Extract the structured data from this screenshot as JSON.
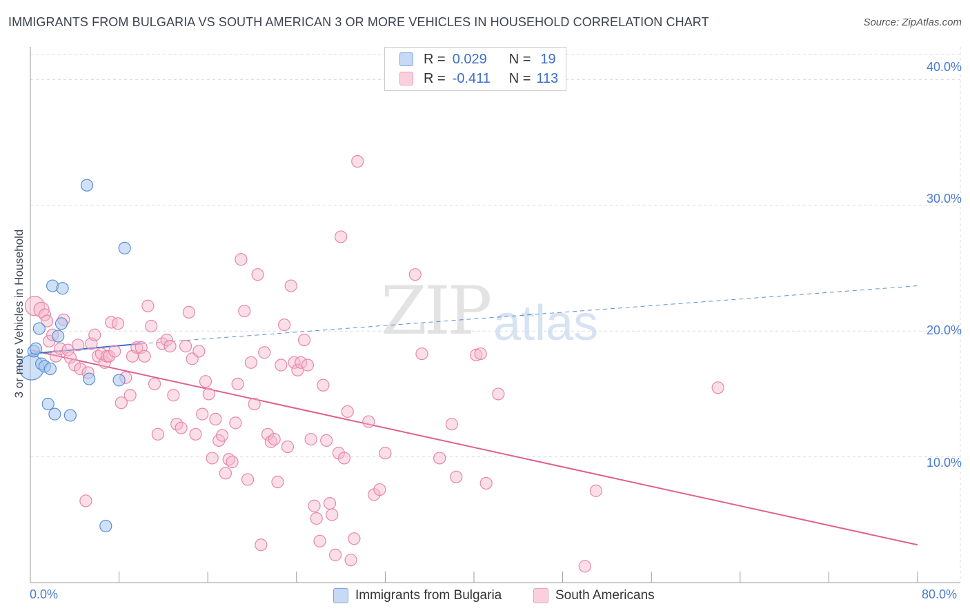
{
  "header": {
    "title": "IMMIGRANTS FROM BULGARIA VS SOUTH AMERICAN 3 OR MORE VEHICLES IN HOUSEHOLD CORRELATION CHART",
    "source": "Source: ZipAtlas.com"
  },
  "watermark": {
    "zip": "ZIP",
    "atlas": "atlas"
  },
  "legend_top": {
    "rows": [
      {
        "r_label": "R =",
        "r_value": "0.029",
        "n_label": "N =",
        "n_value": "19"
      },
      {
        "r_label": "R =",
        "r_value": "-0.411",
        "n_label": "N =",
        "n_value": "113"
      }
    ]
  },
  "colors": {
    "bulgaria_fill": "#aac8f0",
    "bulgaria_stroke": "#5a8fd8",
    "bulgaria_line": "#3a6fcf",
    "south_fill": "#f7b8cc",
    "south_stroke": "#e886a8",
    "south_line": "#e0608e",
    "grid": "#d8dce6",
    "tick_text": "#4a7bd0"
  },
  "chart_data": {
    "type": "scatter",
    "title": "IMMIGRANTS FROM BULGARIA VS SOUTH AMERICAN 3 OR MORE VEHICLES IN HOUSEHOLD CORRELATION CHART",
    "xlabel": "",
    "ylabel": "3 or more Vehicles in Household",
    "xlim": [
      0,
      80
    ],
    "ylim": [
      0,
      42
    ],
    "x_tick_labels": [
      "0.0%",
      "80.0%"
    ],
    "y_ticks": [
      10,
      20,
      30,
      40
    ],
    "y_tick_labels": [
      "10.0%",
      "20.0%",
      "30.0%",
      "40.0%"
    ],
    "grid": true,
    "legend_position": "bottom",
    "series": [
      {
        "name": "Immigrants from Bulgaria",
        "color": "#aac8f0",
        "points": [
          [
            0.1,
            17.1
          ],
          [
            0.3,
            18.4
          ],
          [
            0.5,
            18.6
          ],
          [
            0.8,
            20.2
          ],
          [
            1.0,
            17.4
          ],
          [
            1.3,
            17.2
          ],
          [
            1.6,
            14.2
          ],
          [
            1.8,
            17.0
          ],
          [
            2.0,
            23.6
          ],
          [
            2.2,
            13.4
          ],
          [
            2.5,
            19.6
          ],
          [
            2.8,
            20.6
          ],
          [
            2.9,
            23.4
          ],
          [
            3.6,
            13.3
          ],
          [
            5.1,
            31.6
          ],
          [
            5.3,
            16.2
          ],
          [
            6.8,
            4.5
          ],
          [
            8.0,
            16.1
          ],
          [
            8.5,
            26.6
          ]
        ],
        "trend": {
          "x": [
            0,
            10
          ],
          "y": [
            18.2,
            19.0
          ],
          "dashed_extension": {
            "x": [
              10,
              80
            ],
            "y": [
              19.0,
              23.6
            ]
          }
        }
      },
      {
        "name": "South Americans",
        "color": "#f7b8cc",
        "points": [
          [
            0.4,
            22.0
          ],
          [
            1.0,
            21.7
          ],
          [
            1.3,
            21.3
          ],
          [
            1.5,
            20.8
          ],
          [
            1.7,
            19.2
          ],
          [
            2.0,
            19.7
          ],
          [
            2.3,
            18.0
          ],
          [
            2.7,
            18.6
          ],
          [
            3.0,
            20.9
          ],
          [
            3.4,
            18.5
          ],
          [
            3.6,
            17.9
          ],
          [
            4.0,
            17.3
          ],
          [
            4.3,
            18.9
          ],
          [
            4.5,
            17.0
          ],
          [
            5.0,
            6.5
          ],
          [
            5.2,
            16.7
          ],
          [
            5.5,
            19.0
          ],
          [
            5.8,
            19.7
          ],
          [
            6.1,
            18.0
          ],
          [
            6.4,
            18.2
          ],
          [
            6.7,
            17.5
          ],
          [
            6.9,
            18.0
          ],
          [
            7.1,
            18.0
          ],
          [
            7.3,
            20.7
          ],
          [
            7.6,
            18.4
          ],
          [
            7.9,
            20.6
          ],
          [
            8.2,
            14.3
          ],
          [
            8.6,
            16.3
          ],
          [
            9.0,
            14.9
          ],
          [
            9.2,
            18.0
          ],
          [
            9.6,
            18.7
          ],
          [
            10.0,
            18.7
          ],
          [
            10.3,
            18.0
          ],
          [
            10.6,
            22.0
          ],
          [
            10.9,
            20.4
          ],
          [
            11.2,
            15.8
          ],
          [
            11.5,
            11.8
          ],
          [
            11.9,
            19.0
          ],
          [
            12.3,
            19.3
          ],
          [
            12.6,
            18.8
          ],
          [
            12.9,
            14.9
          ],
          [
            13.2,
            12.6
          ],
          [
            13.6,
            12.3
          ],
          [
            14.0,
            18.8
          ],
          [
            14.3,
            21.5
          ],
          [
            14.6,
            17.8
          ],
          [
            14.9,
            11.8
          ],
          [
            15.2,
            18.4
          ],
          [
            15.5,
            13.4
          ],
          [
            15.8,
            16.0
          ],
          [
            16.1,
            15.0
          ],
          [
            16.4,
            9.9
          ],
          [
            16.7,
            13.0
          ],
          [
            17.0,
            11.3
          ],
          [
            17.3,
            11.7
          ],
          [
            17.6,
            8.7
          ],
          [
            17.9,
            9.8
          ],
          [
            18.2,
            9.6
          ],
          [
            18.5,
            12.7
          ],
          [
            18.7,
            15.8
          ],
          [
            19.0,
            25.7
          ],
          [
            19.3,
            21.6
          ],
          [
            19.6,
            8.2
          ],
          [
            19.9,
            17.5
          ],
          [
            20.2,
            14.2
          ],
          [
            20.5,
            24.5
          ],
          [
            20.8,
            3.0
          ],
          [
            21.1,
            18.3
          ],
          [
            21.4,
            11.8
          ],
          [
            21.7,
            11.2
          ],
          [
            22.0,
            11.4
          ],
          [
            22.3,
            8.0
          ],
          [
            22.6,
            17.3
          ],
          [
            22.9,
            20.5
          ],
          [
            23.2,
            10.8
          ],
          [
            23.5,
            23.6
          ],
          [
            23.8,
            17.5
          ],
          [
            24.1,
            16.9
          ],
          [
            24.4,
            17.5
          ],
          [
            24.7,
            19.3
          ],
          [
            25.0,
            17.3
          ],
          [
            25.3,
            11.4
          ],
          [
            25.6,
            6.1
          ],
          [
            25.8,
            5.1
          ],
          [
            26.1,
            3.3
          ],
          [
            26.4,
            15.7
          ],
          [
            26.7,
            11.3
          ],
          [
            27.0,
            6.3
          ],
          [
            27.2,
            5.4
          ],
          [
            27.5,
            2.2
          ],
          [
            27.8,
            10.3
          ],
          [
            28.0,
            27.5
          ],
          [
            28.3,
            9.9
          ],
          [
            28.6,
            13.6
          ],
          [
            28.9,
            1.8
          ],
          [
            29.2,
            3.5
          ],
          [
            29.5,
            33.5
          ],
          [
            30.5,
            12.8
          ],
          [
            31.0,
            7.0
          ],
          [
            31.5,
            7.4
          ],
          [
            32.0,
            10.3
          ],
          [
            34.7,
            24.5
          ],
          [
            35.3,
            18.2
          ],
          [
            36.9,
            9.9
          ],
          [
            38.0,
            12.6
          ],
          [
            38.4,
            8.4
          ],
          [
            40.2,
            18.1
          ],
          [
            40.6,
            18.2
          ],
          [
            41.1,
            7.9
          ],
          [
            42.2,
            15.0
          ],
          [
            50.0,
            1.3
          ],
          [
            51.0,
            7.3
          ],
          [
            62.0,
            15.5
          ]
        ],
        "trend": {
          "x": [
            0,
            80
          ],
          "y": [
            18.5,
            3.0
          ]
        }
      }
    ]
  },
  "bottom_legend": {
    "items": [
      {
        "label": "Immigrants from Bulgaria"
      },
      {
        "label": "South Americans"
      }
    ]
  }
}
